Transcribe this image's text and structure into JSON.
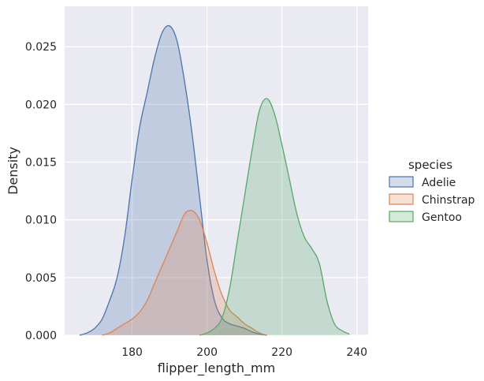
{
  "chart_data": {
    "type": "area",
    "title": "",
    "xlabel": "flipper_length_mm",
    "ylabel": "Density",
    "xlim": [
      162,
      243
    ],
    "ylim": [
      0,
      0.0285
    ],
    "xticks": [
      180,
      200,
      220,
      240
    ],
    "yticks": [
      0.0,
      0.005,
      0.01,
      0.015,
      0.02,
      0.025
    ],
    "ytick_labels": [
      "0.000",
      "0.005",
      "0.010",
      "0.015",
      "0.020",
      "0.025"
    ],
    "grid": true,
    "legend": {
      "title": "species",
      "position": "right"
    },
    "x": [
      166,
      168,
      170,
      172,
      174,
      176,
      178,
      180,
      182,
      184,
      186,
      188,
      190,
      192,
      194,
      196,
      198,
      200,
      202,
      204,
      206,
      208,
      210,
      212,
      214,
      216,
      218,
      220,
      222,
      224,
      226,
      228,
      230,
      232,
      234,
      236,
      238
    ],
    "series": [
      {
        "name": "Adelie",
        "color": "#4c72b0",
        "values": [
          0.0,
          0.0002,
          0.0006,
          0.0014,
          0.003,
          0.005,
          0.0085,
          0.0135,
          0.018,
          0.021,
          0.024,
          0.0262,
          0.0268,
          0.0255,
          0.022,
          0.0175,
          0.012,
          0.0065,
          0.003,
          0.0015,
          0.001,
          0.0008,
          0.0006,
          0.0003,
          0.0001,
          0.0,
          0.0,
          0.0,
          0.0,
          0.0,
          0.0,
          0.0,
          0.0,
          0.0,
          0.0,
          0.0,
          0.0
        ]
      },
      {
        "name": "Chinstrap",
        "color": "#dd8452",
        "values": [
          0.0,
          0.0,
          0.0,
          0.0,
          0.0002,
          0.0006,
          0.001,
          0.0014,
          0.002,
          0.003,
          0.0045,
          0.006,
          0.0075,
          0.009,
          0.0105,
          0.0108,
          0.01,
          0.008,
          0.0055,
          0.0035,
          0.0022,
          0.0016,
          0.001,
          0.0006,
          0.0002,
          0.0,
          0.0,
          0.0,
          0.0,
          0.0,
          0.0,
          0.0,
          0.0,
          0.0,
          0.0,
          0.0,
          0.0
        ]
      },
      {
        "name": "Gentoo",
        "color": "#55a868",
        "values": [
          0.0,
          0.0,
          0.0,
          0.0,
          0.0,
          0.0,
          0.0,
          0.0,
          0.0,
          0.0,
          0.0,
          0.0,
          0.0,
          0.0,
          0.0,
          0.0,
          0.0,
          0.0002,
          0.0006,
          0.0015,
          0.004,
          0.008,
          0.012,
          0.016,
          0.0195,
          0.0205,
          0.0192,
          0.0165,
          0.0135,
          0.0105,
          0.0085,
          0.0075,
          0.0062,
          0.003,
          0.001,
          0.0004,
          0.0001
        ]
      }
    ]
  }
}
